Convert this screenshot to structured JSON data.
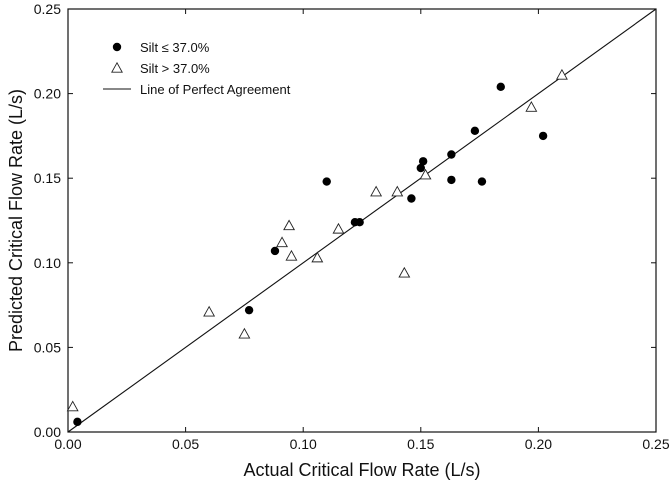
{
  "chart_data": {
    "type": "scatter",
    "xlabel": "Actual Critical Flow Rate (L/s)",
    "ylabel": "Predicted Critical Flow Rate (L/s)",
    "xlim": [
      0,
      0.25
    ],
    "ylim": [
      0,
      0.25
    ],
    "x_ticks": [
      "0.00",
      "0.05",
      "0.10",
      "0.15",
      "0.20",
      "0.25"
    ],
    "y_ticks": [
      "0.00",
      "0.05",
      "0.10",
      "0.15",
      "0.20",
      "0.25"
    ],
    "grid": false,
    "legend_position": "top-left",
    "legend": [
      {
        "marker": "filled-circle",
        "label": "Silt ≤ 37.0%"
      },
      {
        "marker": "open-triangle",
        "label": "Silt > 37.0%"
      },
      {
        "marker": "line",
        "label": "Line of Perfect Agreement"
      }
    ],
    "series": [
      {
        "name": "Silt ≤ 37.0%",
        "marker": "filled-circle",
        "points": [
          [
            0.004,
            0.006
          ],
          [
            0.077,
            0.072
          ],
          [
            0.088,
            0.107
          ],
          [
            0.11,
            0.148
          ],
          [
            0.122,
            0.124
          ],
          [
            0.124,
            0.124
          ],
          [
            0.146,
            0.138
          ],
          [
            0.15,
            0.156
          ],
          [
            0.151,
            0.16
          ],
          [
            0.163,
            0.149
          ],
          [
            0.163,
            0.164
          ],
          [
            0.173,
            0.178
          ],
          [
            0.176,
            0.148
          ],
          [
            0.184,
            0.204
          ],
          [
            0.202,
            0.175
          ]
        ]
      },
      {
        "name": "Silt > 37.0%",
        "marker": "open-triangle",
        "points": [
          [
            0.002,
            0.015
          ],
          [
            0.06,
            0.071
          ],
          [
            0.075,
            0.058
          ],
          [
            0.091,
            0.112
          ],
          [
            0.094,
            0.122
          ],
          [
            0.095,
            0.104
          ],
          [
            0.106,
            0.103
          ],
          [
            0.115,
            0.12
          ],
          [
            0.131,
            0.142
          ],
          [
            0.14,
            0.142
          ],
          [
            0.143,
            0.094
          ],
          [
            0.152,
            0.152
          ],
          [
            0.197,
            0.192
          ],
          [
            0.21,
            0.211
          ]
        ]
      }
    ],
    "reference_line": {
      "name": "Line of Perfect Agreement",
      "from": [
        0,
        0
      ],
      "to": [
        0.25,
        0.25
      ]
    }
  }
}
